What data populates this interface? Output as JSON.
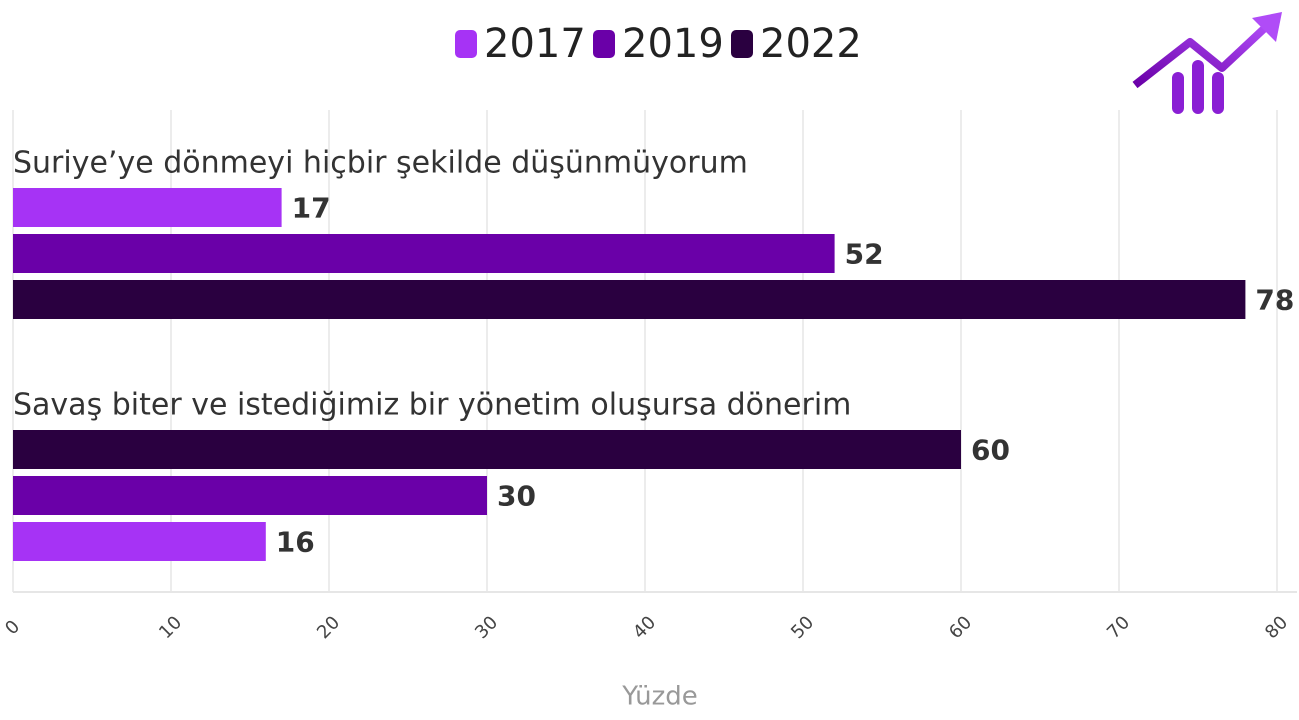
{
  "chart_data": {
    "type": "hbar",
    "categories": [
      "Suriye’ye dönmeyi hiçbir şekilde düşünmüyorum",
      "Savaş biter ve istediğimiz bir yönetim oluşursa dönerim"
    ],
    "series": [
      {
        "name": "2017",
        "color": "#a633f5",
        "values": [
          17,
          16
        ]
      },
      {
        "name": "2019",
        "color": "#6a00a8",
        "values": [
          52,
          30
        ]
      },
      {
        "name": "2022",
        "color": "#2a0040",
        "values": [
          78,
          60
        ]
      }
    ],
    "xlim": [
      0,
      80
    ],
    "xticks": [
      0,
      10,
      20,
      30,
      40,
      50,
      60,
      70,
      80
    ],
    "xlabel": "Yüzde",
    "grid": true,
    "legend": "top"
  }
}
